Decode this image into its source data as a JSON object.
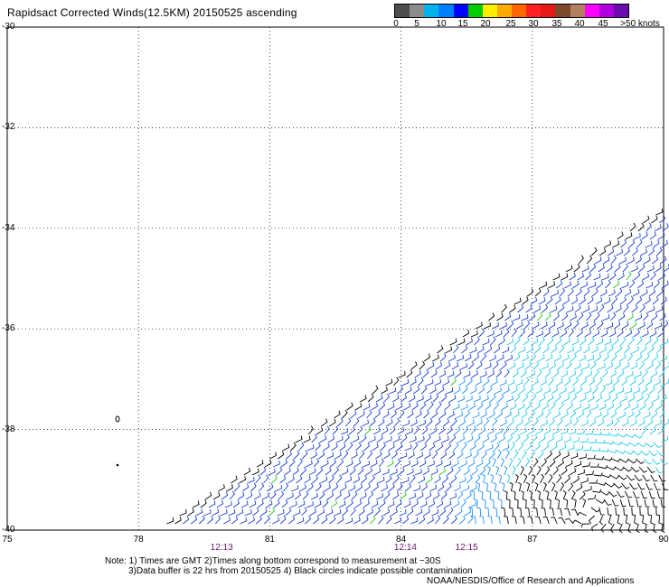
{
  "title": "Rapidsact Corrected Winds(12.5KM) 20150525 ascending",
  "colorbar": {
    "colors": [
      "#4d4d4d",
      "#8c8c8c",
      "#00b2ee",
      "#0080ff",
      "#0000ff",
      "#00cc00",
      "#ffee00",
      "#ffaa00",
      "#ff6600",
      "#ff2020",
      "#e61919",
      "#7a4a2a",
      "#b08060",
      "#ff00ff",
      "#b000e0",
      "#6a0dad"
    ],
    "labels": [
      "0",
      "5",
      "10",
      "15",
      "20",
      "25",
      "30",
      "35",
      "40",
      "45",
      ">50 knots"
    ]
  },
  "y_labels": [
    "-30",
    "-32",
    "-34",
    "-36",
    "-38",
    "-40"
  ],
  "x_labels": [
    "75",
    "78",
    "81",
    "84",
    "87",
    "90"
  ],
  "times": [
    "12:13",
    "12:14",
    "12:15"
  ],
  "note_line1": "Note: 1) Times are GMT 2)Times along bottom correspond to measurement at ~30S",
  "note_line2": "3)Data buffer is 22 hrs from 20150525 4) Black circles indicate possible contamination",
  "credit": "NOAA/NESDIS/Office of Research and Applications",
  "map": {
    "lat_range": [
      -40,
      -30
    ],
    "lon_range": [
      75,
      90
    ]
  }
}
